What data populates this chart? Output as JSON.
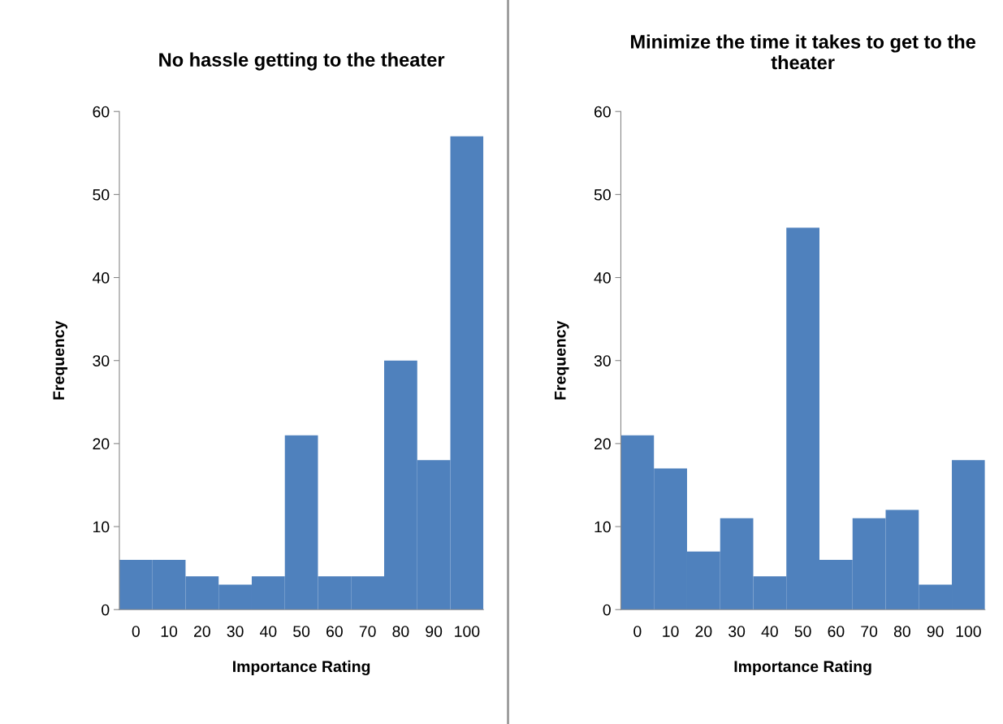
{
  "chart_data": [
    {
      "type": "bar",
      "title": "No hassle getting to the theater",
      "xlabel": "Importance Rating",
      "ylabel": "Frequency",
      "categories": [
        "0",
        "10",
        "20",
        "30",
        "40",
        "50",
        "60",
        "70",
        "80",
        "90",
        "100"
      ],
      "values": [
        6,
        6,
        4,
        3,
        4,
        21,
        4,
        4,
        30,
        18,
        57
      ],
      "color": "#4f81bd",
      "ylim": [
        0,
        60
      ],
      "yticks": [
        0,
        10,
        20,
        30,
        40,
        50,
        60
      ]
    },
    {
      "type": "bar",
      "title": "Minimize the time it takes to get to the theater",
      "xlabel": "Importance Rating",
      "ylabel": "Frequency",
      "categories": [
        "0",
        "10",
        "20",
        "30",
        "40",
        "50",
        "60",
        "70",
        "80",
        "90",
        "100"
      ],
      "values": [
        21,
        17,
        7,
        11,
        4,
        46,
        6,
        11,
        12,
        3,
        18
      ],
      "color": "#4f81bd",
      "ylim": [
        0,
        60
      ],
      "yticks": [
        0,
        10,
        20,
        30,
        40,
        50,
        60
      ]
    }
  ]
}
